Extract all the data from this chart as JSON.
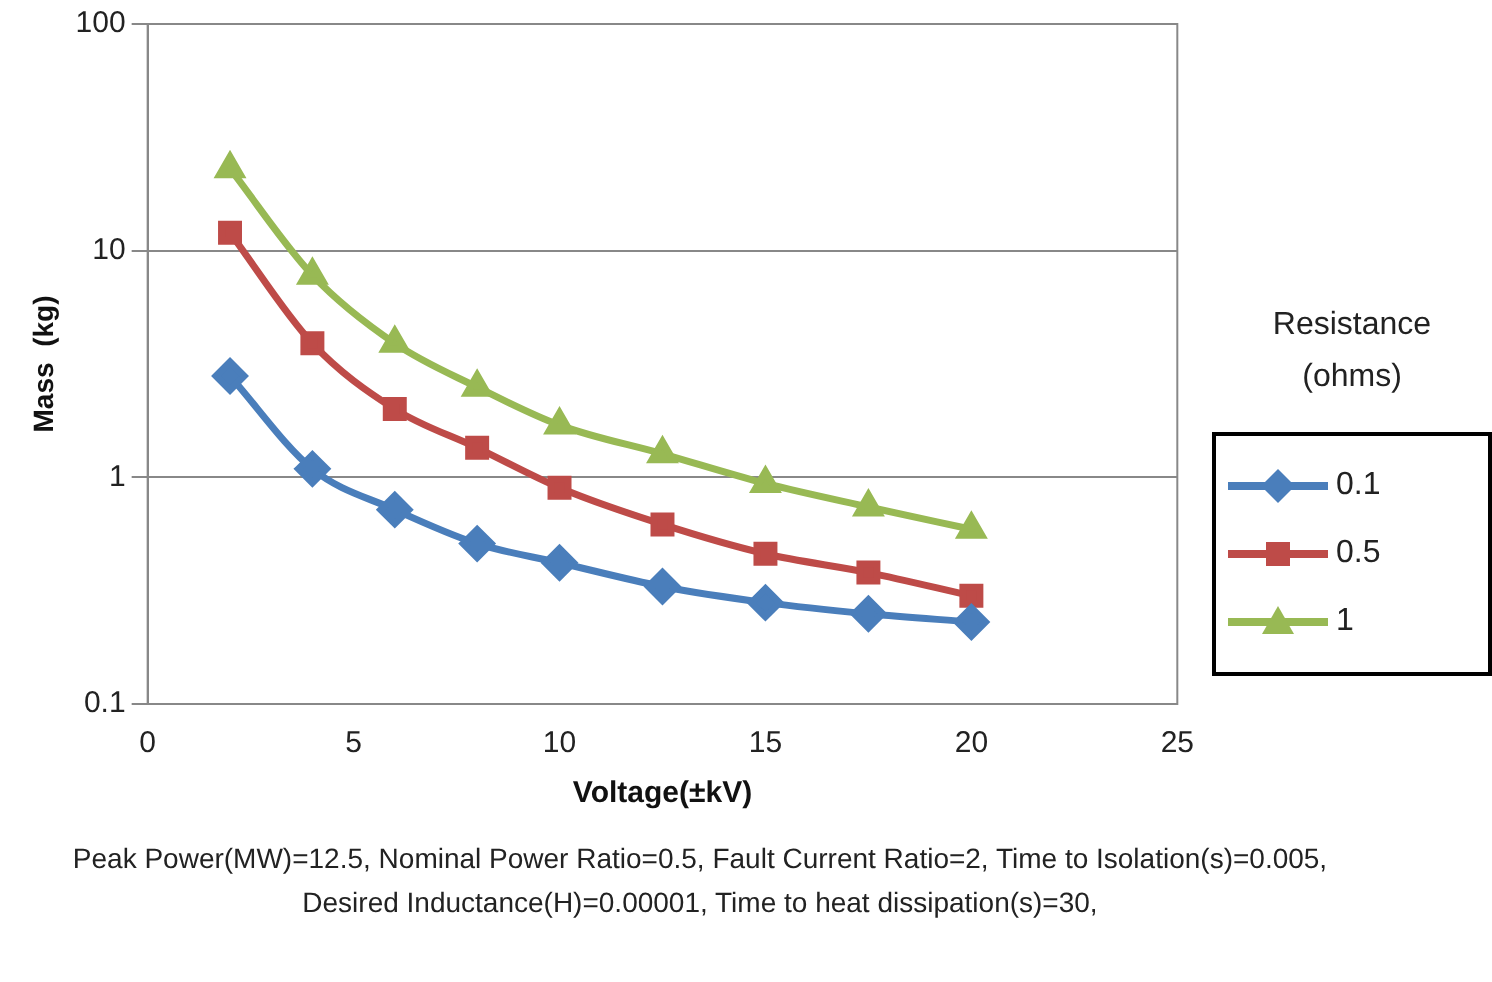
{
  "chart_data": {
    "type": "line",
    "xlabel": "Voltage(±kV)",
    "ylabel": "Mass  (kg)",
    "legend_title": "Resistance (ohms)",
    "legend": "right",
    "grid": "y",
    "log": "y",
    "x": [
      2,
      4,
      6,
      8,
      10,
      12.5,
      15,
      17.5,
      20
    ],
    "xlim": [
      0,
      25
    ],
    "xticks": [
      0,
      5,
      10,
      15,
      20,
      25
    ],
    "ylim": [
      0.1,
      100
    ],
    "yticks": [
      0.1,
      1,
      10,
      100
    ],
    "series": [
      {
        "name": "0.1",
        "color": "#4a7ebb",
        "marker": "diamond",
        "values": [
          2.8,
          1.09,
          0.72,
          0.51,
          0.42,
          0.33,
          0.28,
          0.25,
          0.23
        ]
      },
      {
        "name": "0.5",
        "color": "#be4b48",
        "marker": "square",
        "values": [
          12,
          3.9,
          2.0,
          1.35,
          0.9,
          0.62,
          0.46,
          0.38,
          0.3
        ]
      },
      {
        "name": "1",
        "color": "#98b954",
        "marker": "triangle",
        "values": [
          23,
          7.8,
          3.9,
          2.5,
          1.7,
          1.27,
          0.94,
          0.74,
          0.59
        ]
      }
    ],
    "annotations": [
      "Peak Power(MW)=12.5, Nominal Power Ratio=0.5, Fault Current Ratio=2, Time to Isolation(s)=0.005, Desired Inductance(H)=0.00001, Time to heat dissipation(s)=30,"
    ]
  }
}
